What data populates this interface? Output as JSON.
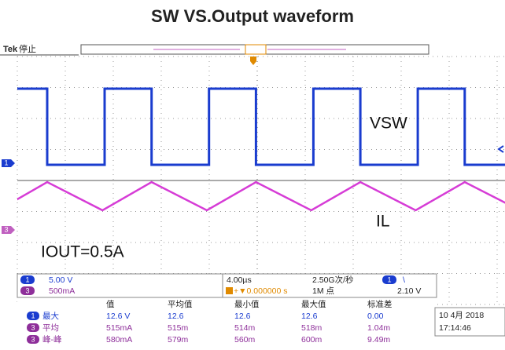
{
  "title": "SW VS.Output waveform",
  "status_bar": {
    "brand": "Tek",
    "state": "停止"
  },
  "waveform_labels": {
    "ch1": "VSW",
    "ch3": "IL",
    "note": "IOUT=0.5A"
  },
  "channels": [
    {
      "id": "1",
      "scale": "5.00 V"
    },
    {
      "id": "3",
      "scale": "500mA"
    }
  ],
  "timebase": {
    "scale": "4.00µs",
    "trigger_position": "+▼0.000000 s",
    "sample_rate": "2.50G次/秒",
    "record_length": "1M 点",
    "trigger_channel": "1",
    "trigger_slope": "\\",
    "trigger_level": "2.10 V"
  },
  "measurements": {
    "headers": [
      "值",
      "平均值",
      "最小值",
      "最大值",
      "标准差"
    ],
    "rows": [
      {
        "channel": "1",
        "name": "最大",
        "values": [
          "12.6 V",
          "12.6",
          "12.6",
          "12.6",
          "0.00"
        ]
      },
      {
        "channel": "3",
        "name": "平均",
        "values": [
          "515mA",
          "515m",
          "514m",
          "518m",
          "1.04m"
        ]
      },
      {
        "channel": "3",
        "name": "峰-峰",
        "values": [
          "580mA",
          "579m",
          "560m",
          "600m",
          "9.49m"
        ]
      }
    ]
  },
  "datetime": {
    "date": "10 4月 2018",
    "time": "17:14:46"
  }
}
